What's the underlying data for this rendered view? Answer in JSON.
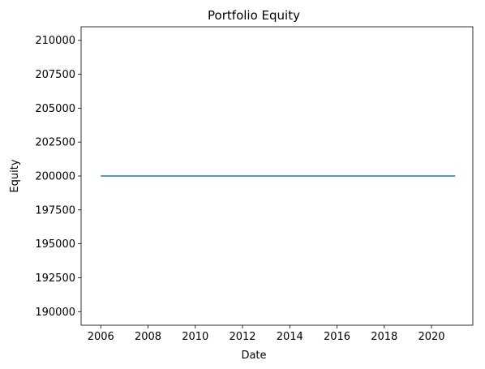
{
  "chart_data": {
    "type": "line",
    "title": "Portfolio Equity",
    "xlabel": "Date",
    "ylabel": "Equity",
    "x_ticks": [
      "2006",
      "2008",
      "2010",
      "2012",
      "2014",
      "2016",
      "2018",
      "2020"
    ],
    "y_ticks": [
      "190000",
      "192500",
      "195000",
      "197500",
      "200000",
      "202500",
      "205000",
      "207500",
      "210000"
    ],
    "xlim": [
      "2005-03",
      "2021-10"
    ],
    "ylim": [
      189000,
      211000
    ],
    "grid": false,
    "series": [
      {
        "color": "#1f77b4",
        "x": [
          "2006-01",
          "2021-01"
        ],
        "values": [
          200000,
          200000
        ]
      }
    ]
  }
}
